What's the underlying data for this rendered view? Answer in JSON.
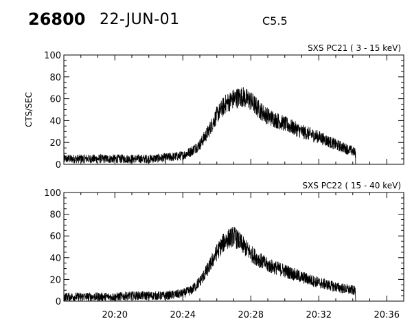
{
  "header": {
    "event_id": "26800",
    "date": "22-JUN-01",
    "goes_class": "C5.5"
  },
  "chart_data": [
    {
      "type": "line",
      "title": "SXS PC21  (  3 - 15 keV)",
      "ylabel": "CTS/SEC",
      "xlabel": "",
      "ylim": [
        0,
        100
      ],
      "yticks": [
        "0",
        "20",
        "40",
        "60",
        "80",
        "100"
      ],
      "xlim": [
        "20:17:00",
        "20:37:00"
      ],
      "xticks": [
        "20:20",
        "20:24",
        "20:28",
        "20:32",
        "20:36"
      ],
      "show_xtick_labels": false,
      "data_end": "20:34:10",
      "grid": false,
      "series": [
        {
          "x": [
            "20:17:00",
            "20:18:00",
            "20:19:00",
            "20:20:00",
            "20:21:00",
            "20:22:00",
            "20:23:00",
            "20:24:00",
            "20:24:30",
            "20:25:00",
            "20:25:30",
            "20:26:00",
            "20:26:30",
            "20:27:00",
            "20:27:30",
            "20:28:00",
            "20:28:30",
            "20:29:00",
            "20:30:00",
            "20:31:00",
            "20:32:00",
            "20:33:00",
            "20:34:00",
            "20:34:10"
          ],
          "values": [
            5,
            5,
            5,
            5,
            5,
            5,
            6,
            8,
            12,
            18,
            30,
            45,
            55,
            60,
            62,
            58,
            50,
            44,
            37,
            30,
            25,
            18,
            12,
            10
          ],
          "noise": 6
        }
      ]
    },
    {
      "type": "line",
      "title": "SXS PC22  ( 15 - 40 keV)",
      "ylabel": "",
      "xlabel": "",
      "ylim": [
        0,
        100
      ],
      "yticks": [
        "0",
        "20",
        "40",
        "60",
        "80",
        "100"
      ],
      "xlim": [
        "20:17:00",
        "20:37:00"
      ],
      "xticks": [
        "20:20",
        "20:24",
        "20:28",
        "20:32",
        "20:36"
      ],
      "show_xtick_labels": true,
      "data_end": "20:34:10",
      "grid": false,
      "series": [
        {
          "x": [
            "20:17:00",
            "20:18:00",
            "20:19:00",
            "20:20:00",
            "20:21:00",
            "20:22:00",
            "20:23:00",
            "20:24:00",
            "20:24:30",
            "20:25:00",
            "20:25:30",
            "20:26:00",
            "20:26:30",
            "20:27:00",
            "20:27:30",
            "20:28:00",
            "20:28:30",
            "20:29:00",
            "20:30:00",
            "20:31:00",
            "20:32:00",
            "20:33:00",
            "20:34:00",
            "20:34:10"
          ],
          "values": [
            4,
            4,
            4,
            4,
            5,
            5,
            5,
            7,
            10,
            18,
            30,
            45,
            56,
            60,
            52,
            44,
            38,
            33,
            28,
            22,
            17,
            13,
            10,
            9
          ],
          "noise": 6
        }
      ]
    }
  ]
}
